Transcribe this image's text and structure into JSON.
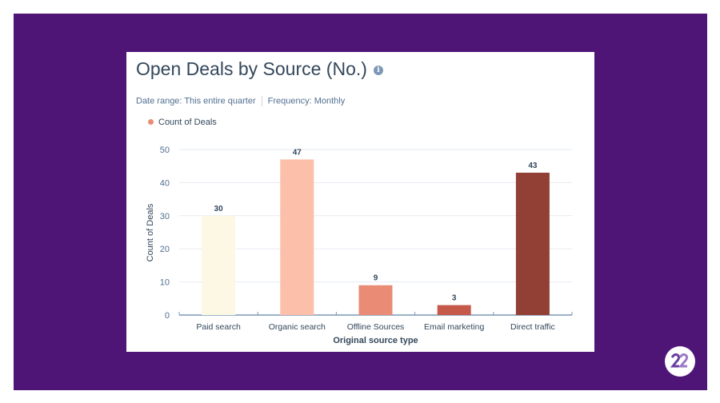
{
  "header": {
    "title": "Open Deals by Source (No.)",
    "info_icon": "info-icon",
    "date_range": "Date range: This entire quarter",
    "frequency": "Frequency: Monthly"
  },
  "chart_data": {
    "type": "bar",
    "title": "Open Deals by Source (No.)",
    "categories": [
      "Paid search",
      "Organic search",
      "Offline Sources",
      "Email marketing",
      "Direct traffic"
    ],
    "series": [
      {
        "name": "Count of Deals",
        "values": [
          30,
          47,
          9,
          3,
          43
        ]
      }
    ],
    "colors": [
      "#fdf8e4",
      "#fcbfa9",
      "#ea8b76",
      "#c5594a",
      "#923f35"
    ],
    "xlabel": "Original source type",
    "ylabel": "Count of Deals",
    "ylim": [
      0,
      50
    ],
    "yticks": [
      0,
      10,
      20,
      30,
      40,
      50
    ],
    "grid": true,
    "legend": "top-left"
  }
}
